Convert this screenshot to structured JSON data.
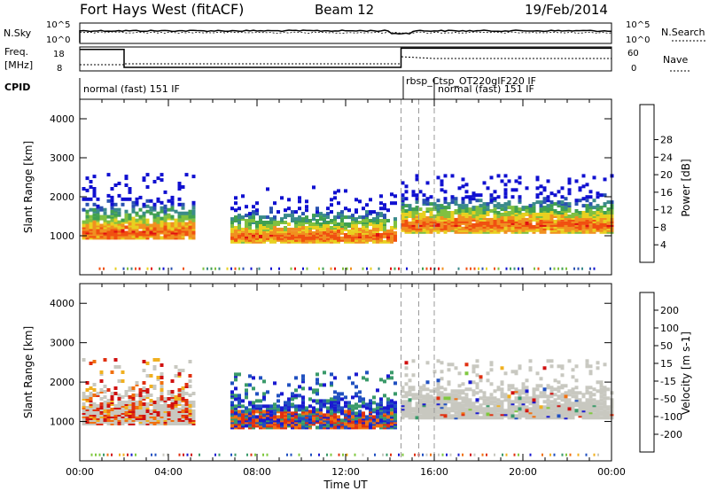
{
  "header": {
    "station": "Fort Hays West (fitACF)",
    "beam": "Beam 12",
    "date": "19/Feb/2014"
  },
  "strip_labels": {
    "nsky": "N.Sky",
    "nsky_top": "10^5",
    "nsky_bottom": "10^0",
    "nsearch": "N.Search",
    "nsearch_top": "10^5",
    "nsearch_bottom": "10^0",
    "freq": "Freq.",
    "freq_unit": "[MHz]",
    "freq_top": "18",
    "freq_bottom": "8",
    "nave": "Nave",
    "nave_top": "60",
    "nave_bottom": "0",
    "cpid": "CPID"
  },
  "cpid_segments": [
    {
      "label": "normal (fast) 151 IF",
      "start_hour": 0,
      "end_hour": 14.5
    },
    {
      "label": "rbsp_Ctsp_OT220gIF220 IF",
      "start_hour": 14.5,
      "end_hour": 16.0
    },
    {
      "label": "normal (fast) 151 IF",
      "start_hour": 16.0,
      "end_hour": 24
    }
  ],
  "chart_data": [
    {
      "type": "heatmap",
      "name": "power",
      "ylabel": "Slant Range [km]",
      "xlabel": "Time UT",
      "xlim": [
        0,
        24
      ],
      "ylim": [
        0,
        4500
      ],
      "x_ticks": [
        "00:00",
        "04:00",
        "08:00",
        "12:00",
        "16:00",
        "20:00",
        "00:00"
      ],
      "y_ticks": [
        1000,
        2000,
        3000,
        4000
      ],
      "colorbar": {
        "label": "Power [dB]",
        "ticks": [
          "4",
          "8",
          "12",
          "16",
          "20",
          "24",
          "28"
        ],
        "colors": [
          "#1010d0",
          "#2a52b0",
          "#3a8a8a",
          "#40a050",
          "#80c040",
          "#e8d020",
          "#f09020",
          "#f05010",
          "#e01010"
        ]
      },
      "dashed_lines_hours": [
        14.5,
        15.3,
        16.0
      ],
      "echo_regions": [
        {
          "start_hour": 0.1,
          "end_hour": 5.2,
          "range_low": 900,
          "range_high": 2550,
          "core_range": 1050
        },
        {
          "start_hour": 6.8,
          "end_hour": 14.3,
          "range_low": 800,
          "range_high": 2200,
          "core_range": 950
        },
        {
          "start_hour": 14.5,
          "end_hour": 24,
          "range_low": 1050,
          "range_high": 2500,
          "core_range": 1250
        }
      ]
    },
    {
      "type": "heatmap",
      "name": "velocity",
      "ylabel": "Slant Range [km]",
      "xlabel": "Time UT",
      "xlim": [
        0,
        24
      ],
      "ylim": [
        0,
        4500
      ],
      "x_ticks": [
        "00:00",
        "04:00",
        "08:00",
        "12:00",
        "16:00",
        "20:00",
        "00:00"
      ],
      "y_ticks": [
        1000,
        2000,
        3000,
        4000
      ],
      "colorbar": {
        "label": "Velocity [m s-1]",
        "ticks": [
          "200",
          "100",
          "50",
          "15",
          "-15",
          "-50",
          "-100",
          "-200"
        ],
        "colors": [
          "#1a1ad0",
          "#2050c0",
          "#3a9a6a",
          "#80c840",
          "#c8c8c0",
          "#f0b020",
          "#f07010",
          "#e03010",
          "#d01010"
        ]
      },
      "dashed_lines_hours": [
        14.5,
        15.3,
        16.0
      ],
      "echo_regions": [
        {
          "start_hour": 0.1,
          "end_hour": 5.2,
          "range_low": 900,
          "range_high": 2550,
          "dominant": "negative"
        },
        {
          "start_hour": 6.8,
          "end_hour": 14.3,
          "range_low": 800,
          "range_high": 2200,
          "dominant": "positive"
        },
        {
          "start_hour": 14.5,
          "end_hour": 24,
          "range_low": 1050,
          "range_high": 2500,
          "dominant": "ground-scatter"
        }
      ]
    }
  ],
  "freq_series_hours": [
    [
      0,
      17
    ],
    [
      2.0,
      17
    ],
    [
      2.0,
      9.5
    ],
    [
      14.5,
      9.5
    ],
    [
      14.5,
      17.5
    ],
    [
      24,
      17.5
    ]
  ]
}
